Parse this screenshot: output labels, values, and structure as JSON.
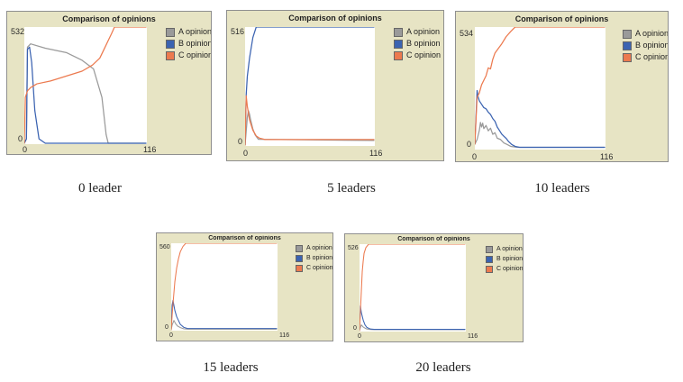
{
  "chart_data": [
    {
      "type": "line",
      "title": "Comparison of opinions",
      "caption": "0 leader",
      "xlabel": "",
      "ylabel": "",
      "xlim": [
        0,
        116
      ],
      "ylim": [
        0,
        532
      ],
      "x_ticks": [
        "0",
        "116"
      ],
      "y_ticks": [
        "0",
        "532"
      ],
      "legend_position": "right",
      "series": [
        {
          "name": "A opinion",
          "color": "#9a9a9a",
          "points": [
            [
              0,
              0
            ],
            [
              2,
              20
            ],
            [
              3,
              440
            ],
            [
              6,
              455
            ],
            [
              20,
              435
            ],
            [
              40,
              415
            ],
            [
              55,
              380
            ],
            [
              66,
              340
            ],
            [
              74,
              210
            ],
            [
              78,
              40
            ],
            [
              80,
              0
            ],
            [
              116,
              0
            ]
          ]
        },
        {
          "name": "B opinion",
          "color": "#3b63b1",
          "points": [
            [
              0,
              0
            ],
            [
              2,
              20
            ],
            [
              3,
              430
            ],
            [
              5,
              440
            ],
            [
              7,
              370
            ],
            [
              10,
              150
            ],
            [
              14,
              20
            ],
            [
              20,
              0
            ],
            [
              116,
              0
            ]
          ]
        },
        {
          "name": "C opinion",
          "color": "#ec7a4f",
          "points": [
            [
              0,
              0
            ],
            [
              1,
              210
            ],
            [
              3,
              240
            ],
            [
              6,
              255
            ],
            [
              12,
              272
            ],
            [
              25,
              285
            ],
            [
              35,
              300
            ],
            [
              45,
              315
            ],
            [
              55,
              330
            ],
            [
              65,
              358
            ],
            [
              72,
              390
            ],
            [
              77,
              440
            ],
            [
              80,
              470
            ],
            [
              83,
              500
            ],
            [
              86,
              532
            ],
            [
              116,
              532
            ]
          ]
        }
      ]
    },
    {
      "type": "line",
      "title": "Comparison of opinions",
      "caption": "5 leaders",
      "xlabel": "",
      "ylabel": "",
      "xlim": [
        0,
        116
      ],
      "ylim": [
        0,
        516
      ],
      "x_ticks": [
        "0",
        "116"
      ],
      "y_ticks": [
        "0",
        "516"
      ],
      "legend_position": "right",
      "series": [
        {
          "name": "A opinion",
          "color": "#9a9a9a",
          "points": [
            [
              0,
              0
            ],
            [
              1,
              60
            ],
            [
              2,
              120
            ],
            [
              3,
              150
            ],
            [
              4,
              135
            ],
            [
              5,
              110
            ],
            [
              7,
              70
            ],
            [
              9,
              45
            ],
            [
              12,
              25
            ],
            [
              116,
              20
            ]
          ]
        },
        {
          "name": "B opinion",
          "color": "#3b63b1",
          "points": [
            [
              0,
              0
            ],
            [
              1,
              220
            ],
            [
              2,
              300
            ],
            [
              4,
              380
            ],
            [
              7,
              470
            ],
            [
              10,
              516
            ],
            [
              116,
              516
            ]
          ]
        },
        {
          "name": "C opinion",
          "color": "#ec7a4f",
          "points": [
            [
              0,
              0
            ],
            [
              1,
              215
            ],
            [
              2,
              170
            ],
            [
              4,
              110
            ],
            [
              7,
              65
            ],
            [
              10,
              40
            ],
            [
              13,
              30
            ],
            [
              18,
              24
            ],
            [
              116,
              24
            ]
          ]
        }
      ]
    },
    {
      "type": "line",
      "title": "Comparison of opinions",
      "caption": "10 leaders",
      "xlabel": "",
      "ylabel": "",
      "xlim": [
        0,
        116
      ],
      "ylim": [
        0,
        534
      ],
      "x_ticks": [
        "0",
        "116"
      ],
      "y_ticks": [
        "0",
        "534"
      ],
      "legend_position": "right",
      "series": [
        {
          "name": "A opinion",
          "color": "#9a9a9a",
          "points": [
            [
              0,
              20
            ],
            [
              2,
              40
            ],
            [
              4,
              80
            ],
            [
              5,
              115
            ],
            [
              6,
              95
            ],
            [
              7,
              112
            ],
            [
              8,
              88
            ],
            [
              10,
              102
            ],
            [
              12,
              78
            ],
            [
              14,
              90
            ],
            [
              16,
              63
            ],
            [
              18,
              70
            ],
            [
              20,
              46
            ],
            [
              23,
              40
            ],
            [
              26,
              25
            ],
            [
              29,
              18
            ],
            [
              32,
              10
            ],
            [
              35,
              8
            ],
            [
              38,
              6
            ],
            [
              116,
              6
            ]
          ]
        },
        {
          "name": "B opinion",
          "color": "#3b63b1",
          "points": [
            [
              0,
              20
            ],
            [
              2,
              255
            ],
            [
              3,
              225
            ],
            [
              4,
              210
            ],
            [
              6,
              195
            ],
            [
              8,
              180
            ],
            [
              10,
              175
            ],
            [
              12,
              160
            ],
            [
              14,
              150
            ],
            [
              16,
              132
            ],
            [
              18,
              120
            ],
            [
              20,
              95
            ],
            [
              22,
              80
            ],
            [
              24,
              64
            ],
            [
              26,
              54
            ],
            [
              28,
              45
            ],
            [
              30,
              32
            ],
            [
              33,
              18
            ],
            [
              36,
              10
            ],
            [
              40,
              6
            ],
            [
              116,
              6
            ]
          ]
        },
        {
          "name": "C opinion",
          "color": "#ec7a4f",
          "points": [
            [
              0,
              20
            ],
            [
              2,
              225
            ],
            [
              4,
              245
            ],
            [
              6,
              280
            ],
            [
              8,
              300
            ],
            [
              10,
              320
            ],
            [
              12,
              355
            ],
            [
              14,
              350
            ],
            [
              16,
              392
            ],
            [
              18,
              420
            ],
            [
              21,
              440
            ],
            [
              24,
              460
            ],
            [
              28,
              492
            ],
            [
              32,
              514
            ],
            [
              36,
              534
            ],
            [
              116,
              534
            ]
          ]
        }
      ]
    },
    {
      "type": "line",
      "title": "Comparison of opinions",
      "caption": "15 leaders",
      "xlabel": "",
      "ylabel": "",
      "xlim": [
        0,
        116
      ],
      "ylim": [
        0,
        560
      ],
      "x_ticks": [
        "0",
        "116"
      ],
      "y_ticks": [
        "0",
        "560"
      ],
      "legend_position": "right",
      "series": [
        {
          "name": "A opinion",
          "color": "#9a9a9a",
          "points": [
            [
              0,
              0
            ],
            [
              1,
              30
            ],
            [
              3,
              60
            ],
            [
              5,
              38
            ],
            [
              7,
              24
            ],
            [
              10,
              14
            ],
            [
              14,
              6
            ],
            [
              18,
              4
            ],
            [
              116,
              4
            ]
          ]
        },
        {
          "name": "B opinion",
          "color": "#3b63b1",
          "points": [
            [
              0,
              0
            ],
            [
              1,
              160
            ],
            [
              2,
              190
            ],
            [
              4,
              125
            ],
            [
              6,
              85
            ],
            [
              8,
              60
            ],
            [
              10,
              35
            ],
            [
              14,
              15
            ],
            [
              18,
              8
            ],
            [
              116,
              8
            ]
          ]
        },
        {
          "name": "C opinion",
          "color": "#ec7a4f",
          "points": [
            [
              0,
              0
            ],
            [
              1,
              90
            ],
            [
              2,
              170
            ],
            [
              4,
              310
            ],
            [
              6,
              400
            ],
            [
              8,
              460
            ],
            [
              10,
              505
            ],
            [
              13,
              540
            ],
            [
              16,
              560
            ],
            [
              116,
              560
            ]
          ]
        }
      ]
    },
    {
      "type": "line",
      "title": "Comparison of opinions",
      "caption": "20 leaders",
      "xlabel": "",
      "ylabel": "",
      "xlim": [
        0,
        116
      ],
      "ylim": [
        0,
        526
      ],
      "x_ticks": [
        "0",
        "116"
      ],
      "y_ticks": [
        "0",
        "526"
      ],
      "legend_position": "right",
      "series": [
        {
          "name": "A opinion",
          "color": "#9a9a9a",
          "points": [
            [
              0,
              0
            ],
            [
              1,
              20
            ],
            [
              2,
              35
            ],
            [
              4,
              22
            ],
            [
              7,
              12
            ],
            [
              10,
              8
            ],
            [
              14,
              6
            ],
            [
              116,
              6
            ]
          ]
        },
        {
          "name": "B opinion",
          "color": "#3b63b1",
          "points": [
            [
              0,
              0
            ],
            [
              1,
              150
            ],
            [
              2,
              110
            ],
            [
              4,
              65
            ],
            [
              6,
              35
            ],
            [
              8,
              20
            ],
            [
              12,
              10
            ],
            [
              16,
              8
            ],
            [
              116,
              8
            ]
          ]
        },
        {
          "name": "C opinion",
          "color": "#ec7a4f",
          "points": [
            [
              0,
              0
            ],
            [
              1,
              120
            ],
            [
              2,
              240
            ],
            [
              3,
              360
            ],
            [
              4,
              420
            ],
            [
              5,
              470
            ],
            [
              7,
              505
            ],
            [
              10,
              526
            ],
            [
              116,
              526
            ]
          ]
        }
      ]
    }
  ]
}
